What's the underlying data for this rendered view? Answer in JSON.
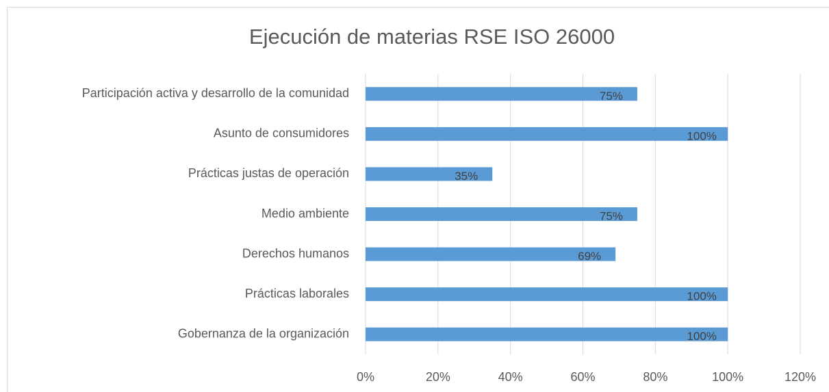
{
  "chart_data": {
    "type": "barh",
    "title": "Ejecución de materias RSE ISO 26000",
    "categories": [
      "Participación activa y desarrollo de la comunidad",
      "Asunto de consumidores",
      "Prácticas justas de operación",
      "Medio ambiente",
      "Derechos humanos",
      "Prácticas laborales",
      "Gobernanza de la organización"
    ],
    "values": [
      75,
      100,
      35,
      75,
      69,
      100,
      100
    ],
    "value_labels": [
      "75%",
      "100%",
      "35%",
      "75%",
      "69%",
      "100%",
      "100%"
    ],
    "color": "#5b9bd5",
    "xlim": [
      0,
      120
    ],
    "xticks": [
      {
        "value": 0,
        "label": "0%"
      },
      {
        "value": 20,
        "label": "20%"
      },
      {
        "value": 40,
        "label": "40%"
      },
      {
        "value": 60,
        "label": "60%"
      },
      {
        "value": 80,
        "label": "80%"
      },
      {
        "value": 100,
        "label": "100%"
      },
      {
        "value": 120,
        "label": "120%"
      }
    ],
    "grid": true
  }
}
